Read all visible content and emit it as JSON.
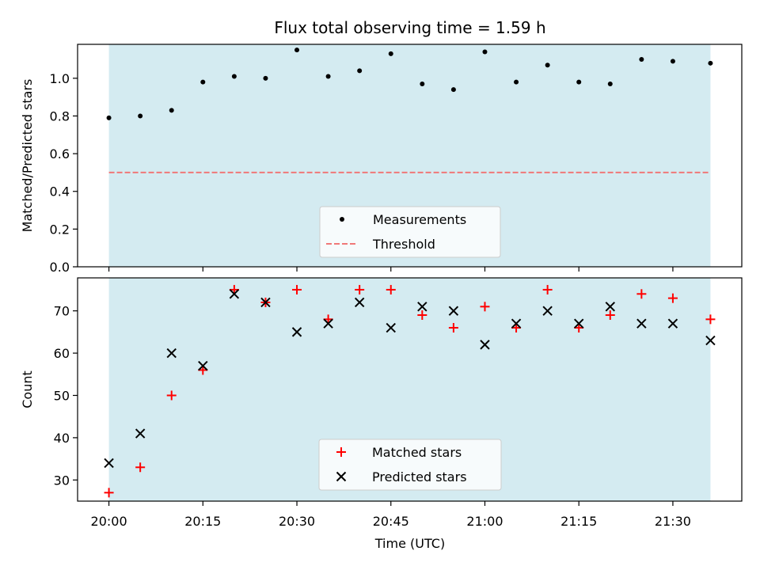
{
  "chart_data": {
    "title": "Flux total observing time = 1.59 h",
    "xlabel": "Time (UTC)",
    "x_ticks": [
      "20:00",
      "20:15",
      "20:30",
      "20:45",
      "21:00",
      "21:15",
      "21:30"
    ],
    "shaded_span": {
      "start": "20:00",
      "end": "21:36",
      "color": "#d4ebf1"
    },
    "panels": [
      {
        "type": "scatter",
        "ylabel": "Matched/Predicted stars",
        "ylim": [
          0,
          1.18
        ],
        "y_ticks": [
          "0.0",
          "0.2",
          "0.4",
          "0.6",
          "0.8",
          "1.0"
        ],
        "legend_placement": "lower-center",
        "series": [
          {
            "name": "Measurements",
            "marker": "dot",
            "color": "#000000",
            "x": [
              "20:00",
              "20:05",
              "20:10",
              "20:15",
              "20:20",
              "20:25",
              "20:30",
              "20:35",
              "20:40",
              "20:45",
              "20:50",
              "20:55",
              "21:00",
              "21:05",
              "21:10",
              "21:15",
              "21:20",
              "21:25",
              "21:30",
              "21:36"
            ],
            "y": [
              0.79,
              0.8,
              0.83,
              0.98,
              1.01,
              1.0,
              1.15,
              1.01,
              1.04,
              1.13,
              0.97,
              0.94,
              1.14,
              0.98,
              1.07,
              0.98,
              0.97,
              1.1,
              1.09,
              1.08
            ]
          }
        ],
        "lines": [
          {
            "name": "Threshold",
            "style": "dashed",
            "color": "#f07878",
            "y": 0.5,
            "x_range": [
              "20:00",
              "21:36"
            ]
          }
        ]
      },
      {
        "type": "scatter",
        "ylabel": "Count",
        "ylim": [
          25,
          77.8
        ],
        "y_ticks": [
          "30",
          "40",
          "50",
          "60",
          "70"
        ],
        "legend_placement": "lower-center",
        "series": [
          {
            "name": "Matched stars",
            "marker": "plus",
            "color": "#ff0000",
            "x": [
              "20:00",
              "20:05",
              "20:10",
              "20:15",
              "20:20",
              "20:25",
              "20:30",
              "20:35",
              "20:40",
              "20:45",
              "20:50",
              "20:55",
              "21:00",
              "21:05",
              "21:10",
              "21:15",
              "21:20",
              "21:25",
              "21:30",
              "21:36"
            ],
            "y": [
              27,
              33,
              50,
              56,
              75,
              72,
              75,
              68,
              75,
              75,
              69,
              66,
              71,
              66,
              75,
              66,
              69,
              74,
              73,
              68
            ]
          },
          {
            "name": "Predicted stars",
            "marker": "x",
            "color": "#000000",
            "x": [
              "20:00",
              "20:05",
              "20:10",
              "20:15",
              "20:20",
              "20:25",
              "20:30",
              "20:35",
              "20:40",
              "20:45",
              "20:50",
              "20:55",
              "21:00",
              "21:05",
              "21:10",
              "21:15",
              "21:20",
              "21:25",
              "21:30",
              "21:36"
            ],
            "y": [
              34,
              41,
              60,
              57,
              74,
              72,
              65,
              67,
              72,
              66,
              71,
              70,
              62,
              67,
              70,
              67,
              71,
              67,
              67,
              63
            ]
          }
        ]
      }
    ]
  }
}
